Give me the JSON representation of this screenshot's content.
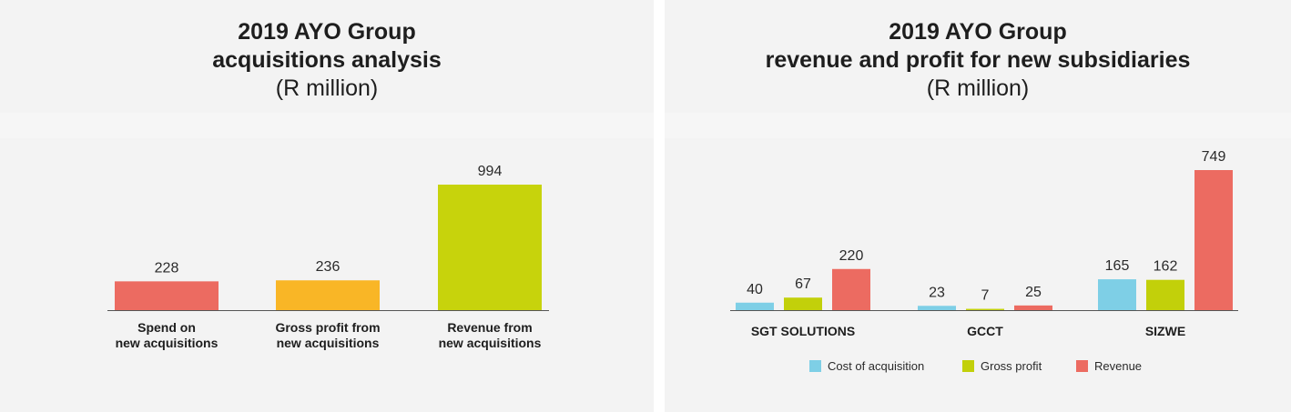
{
  "chart_data": [
    {
      "type": "bar",
      "title": "2019 AYO Group",
      "subtitle": "acquisitions analysis",
      "unit": "(R million)",
      "categories": [
        [
          "Spend on",
          "new acquisitions"
        ],
        [
          "Gross profit from",
          "new acquisitions"
        ],
        [
          "Revenue from",
          "new acquisitions"
        ]
      ],
      "values": [
        228,
        236,
        994
      ],
      "colors": [
        "#ec6b61",
        "#f9b626",
        "#c7d30c"
      ],
      "ylim": [
        0,
        1000
      ],
      "grid": false
    },
    {
      "type": "bar",
      "title": "2019 AYO Group",
      "subtitle": "revenue and profit for new subsidiaries",
      "unit": "(R million)",
      "categories": [
        "SGT SOLUTIONS",
        "GCCT",
        "SIZWE"
      ],
      "series": [
        {
          "name": "Cost of acquisition",
          "color": "#7ecfe6",
          "values": [
            40,
            23,
            165
          ]
        },
        {
          "name": "Gross profit",
          "color": "#c2d00a",
          "values": [
            67,
            7,
            162
          ]
        },
        {
          "name": "Revenue",
          "color": "#ec6b61",
          "values": [
            220,
            25,
            749
          ]
        }
      ],
      "ylim": [
        0,
        800
      ],
      "legend": "bottom",
      "grid": false
    }
  ]
}
